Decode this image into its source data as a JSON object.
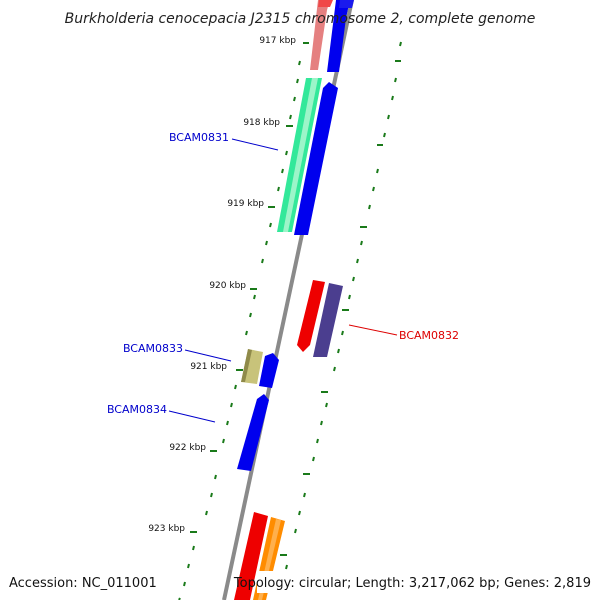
{
  "title": "Burkholderia cenocepacia J2315 chromosome 2, complete genome",
  "footer": {
    "accession": "Accession: NC_011001",
    "summary": "Topology: circular; Length: 3,217,062 bp; Genes: 2,819"
  },
  "colors": {
    "backbone": "#8a8a8a",
    "tick": "#1a7a1a",
    "label_forward": "#0000cc",
    "label_reverse": "#dd0000"
  },
  "ticks": [
    {
      "label": "917 kbp"
    },
    {
      "label": "918 kbp"
    },
    {
      "label": "919 kbp"
    },
    {
      "label": "920 kbp"
    },
    {
      "label": "921 kbp"
    },
    {
      "label": "922 kbp"
    },
    {
      "label": "923 kbp"
    }
  ],
  "gene_labels": [
    {
      "text": "BCAM0831",
      "strand": "forward"
    },
    {
      "text": "BCAM0832",
      "strand": "reverse"
    },
    {
      "text": "BCAM0833",
      "strand": "forward"
    },
    {
      "text": "BCAM0834",
      "strand": "forward"
    }
  ]
}
